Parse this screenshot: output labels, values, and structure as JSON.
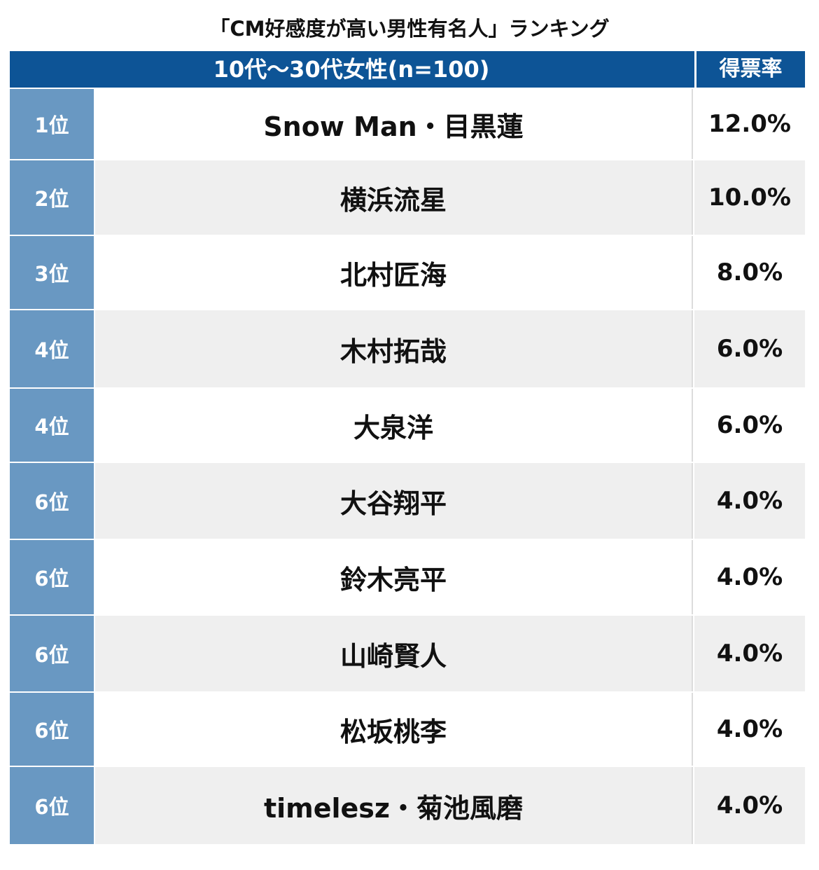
{
  "title": "「CM好感度が高い男性有名人」ランキング",
  "header": {
    "group_label": "10代〜30代女性(n=100)",
    "rate_label": "得票率"
  },
  "colors": {
    "header_bg": "#0d5496",
    "rank_bg": "#6998c2",
    "row_alt_bg": "#efefef"
  },
  "chart_data": {
    "type": "table",
    "title": "「CM好感度が高い男性有名人」ランキング",
    "columns": [
      "",
      "10代〜30代女性(n=100)",
      "得票率"
    ],
    "rows": [
      {
        "rank": "1位",
        "name": "Snow Man・目黒蓮",
        "rate": "12.0%"
      },
      {
        "rank": "2位",
        "name": "横浜流星",
        "rate": "10.0%"
      },
      {
        "rank": "3位",
        "name": "北村匠海",
        "rate": "8.0%"
      },
      {
        "rank": "4位",
        "name": "木村拓哉",
        "rate": "6.0%"
      },
      {
        "rank": "4位",
        "name": "大泉洋",
        "rate": "6.0%"
      },
      {
        "rank": "6位",
        "name": "大谷翔平",
        "rate": "4.0%"
      },
      {
        "rank": "6位",
        "name": "鈴木亮平",
        "rate": "4.0%"
      },
      {
        "rank": "6位",
        "name": "山崎賢人",
        "rate": "4.0%"
      },
      {
        "rank": "6位",
        "name": "松坂桃李",
        "rate": "4.0%"
      },
      {
        "rank": "6位",
        "name": "timelesz・菊池風磨",
        "rate": "4.0%"
      }
    ]
  }
}
